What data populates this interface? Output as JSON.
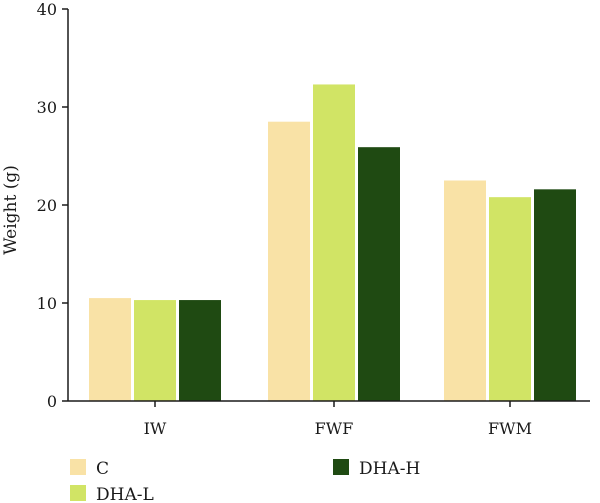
{
  "chart_data": {
    "type": "bar",
    "title": "",
    "xlabel": "",
    "ylabel": "Weight (g)",
    "ylim": [
      0,
      40
    ],
    "yticks": [
      0,
      10,
      20,
      30,
      40
    ],
    "grid": false,
    "legend_position": "bottom-left",
    "categories": [
      "IW",
      "FWF",
      "FWM"
    ],
    "series": [
      {
        "name": "C",
        "color": "#f9e2a6",
        "values": [
          10.5,
          28.5,
          22.5
        ]
      },
      {
        "name": "DHA-L",
        "color": "#d1e465",
        "values": [
          10.3,
          32.3,
          20.8
        ]
      },
      {
        "name": "DHA-H",
        "color": "#1f4a12",
        "values": [
          10.3,
          25.9,
          21.6
        ]
      }
    ]
  }
}
